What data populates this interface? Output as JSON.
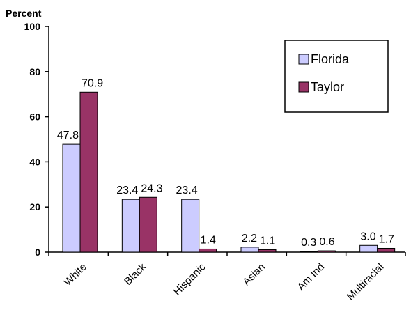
{
  "chart_data": {
    "type": "bar",
    "ylabel": "Percent",
    "ylim": [
      0,
      100
    ],
    "yticks": [
      0,
      20,
      40,
      60,
      80,
      100
    ],
    "categories": [
      "White",
      "Black",
      "Hispanic",
      "Asian",
      "Am Ind",
      "Multiracial"
    ],
    "series": [
      {
        "name": "Florida",
        "color": "#ccccff",
        "values": [
          47.8,
          23.4,
          23.4,
          2.2,
          0.3,
          3.0
        ],
        "labels": [
          "47.8",
          "23.4",
          "23.4",
          "2.2",
          "0.3",
          "3.0"
        ]
      },
      {
        "name": "Taylor",
        "color": "#993366",
        "values": [
          70.9,
          24.3,
          1.4,
          1.1,
          0.6,
          1.7
        ],
        "labels": [
          "70.9",
          "24.3",
          "1.4",
          "1.1",
          "0.6",
          "1.7"
        ]
      }
    ],
    "grid": false,
    "legend": "top-right"
  }
}
